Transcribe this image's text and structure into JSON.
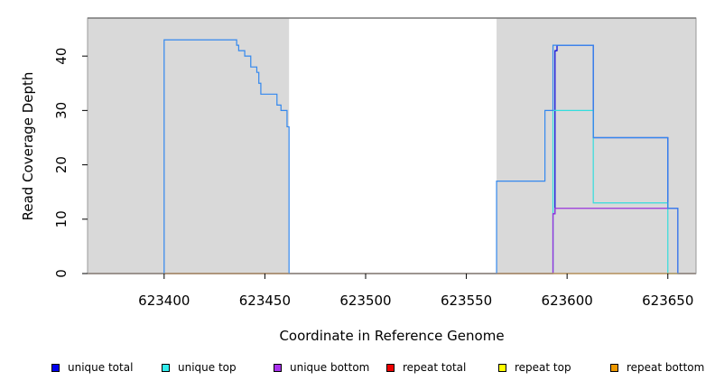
{
  "chart_data": {
    "type": "line",
    "title": "",
    "xlabel": "Coordinate in Reference Genome",
    "ylabel": "Read Coverage Depth",
    "xlim": [
      623362,
      623664
    ],
    "ylim": [
      0,
      47
    ],
    "x_ticks": [
      623400,
      623450,
      623500,
      623550,
      623600,
      623650
    ],
    "y_ticks": [
      0,
      10,
      20,
      30,
      40
    ],
    "grid": false,
    "background": "#d9d9d9",
    "shaded_regions": [
      [
        623362,
        623462
      ],
      [
        623565,
        623664
      ]
    ],
    "legend_position": "bottom",
    "series": [
      {
        "name": "unique total",
        "color": "#0000dd",
        "points": [
          [
            623362,
            0
          ],
          [
            623593,
            0
          ],
          [
            623593,
            11
          ],
          [
            623594,
            11
          ],
          [
            623594,
            41
          ],
          [
            623595,
            41
          ],
          [
            623595,
            42
          ],
          [
            623613,
            42
          ],
          [
            623613,
            25
          ],
          [
            623650,
            25
          ],
          [
            623650,
            12
          ],
          [
            623655,
            12
          ],
          [
            623655,
            0
          ],
          [
            623664,
            0
          ]
        ]
      },
      {
        "name": "unique top",
        "color": "#33dddd",
        "points": [
          [
            623362,
            0
          ],
          [
            623593,
            0
          ],
          [
            623593,
            30
          ],
          [
            623613,
            30
          ],
          [
            623613,
            13
          ],
          [
            623650,
            13
          ],
          [
            623650,
            0
          ],
          [
            623664,
            0
          ]
        ]
      },
      {
        "name": "unique bottom",
        "color": "#9933dd",
        "points": [
          [
            623362,
            0
          ],
          [
            623593,
            0
          ],
          [
            623593,
            11
          ],
          [
            623594,
            11
          ],
          [
            623594,
            12
          ],
          [
            623655,
            12
          ],
          [
            623655,
            0
          ],
          [
            623664,
            0
          ]
        ]
      },
      {
        "name": "repeat total",
        "color": "#dd0000",
        "points": [
          [
            623362,
            0
          ],
          [
            623664,
            0
          ]
        ]
      },
      {
        "name": "repeat top",
        "color": "#e6e600",
        "points": [
          [
            623362,
            0
          ],
          [
            623664,
            0
          ]
        ]
      },
      {
        "name": "repeat bottom",
        "color": "#ee9900",
        "points": [
          [
            623362,
            0
          ],
          [
            623664,
            0
          ]
        ]
      },
      {
        "name": "",
        "color": "#3388ee",
        "points": [
          [
            623362,
            0
          ],
          [
            623400,
            0
          ],
          [
            623400,
            43
          ],
          [
            623436,
            43
          ],
          [
            623436,
            42
          ],
          [
            623437,
            42
          ],
          [
            623437,
            41
          ],
          [
            623440,
            41
          ],
          [
            623440,
            40
          ],
          [
            623443,
            40
          ],
          [
            623443,
            38
          ],
          [
            623446,
            38
          ],
          [
            623446,
            37
          ],
          [
            623447,
            37
          ],
          [
            623447,
            35
          ],
          [
            623448,
            35
          ],
          [
            623448,
            33
          ],
          [
            623456,
            33
          ],
          [
            623456,
            31
          ],
          [
            623458,
            31
          ],
          [
            623458,
            30
          ],
          [
            623461,
            30
          ],
          [
            623461,
            27
          ],
          [
            623462,
            27
          ],
          [
            623462,
            0
          ],
          [
            623565,
            0
          ],
          [
            623565,
            17
          ],
          [
            623589,
            17
          ],
          [
            623589,
            30
          ],
          [
            623593,
            30
          ],
          [
            623593,
            42
          ],
          [
            623613,
            42
          ],
          [
            623613,
            25
          ],
          [
            623650,
            25
          ],
          [
            623650,
            12
          ],
          [
            623655,
            12
          ],
          [
            623655,
            0
          ],
          [
            623664,
            0
          ]
        ]
      }
    ]
  },
  "legend": {
    "items": [
      {
        "label": "unique total",
        "color": "#0000ee"
      },
      {
        "label": "unique top",
        "color": "#33eeee"
      },
      {
        "label": "unique bottom",
        "color": "#aa33ee"
      },
      {
        "label": "repeat total",
        "color": "#ee0000"
      },
      {
        "label": "repeat top",
        "color": "#ffff00"
      },
      {
        "label": "repeat bottom",
        "color": "#ee9900"
      }
    ]
  }
}
